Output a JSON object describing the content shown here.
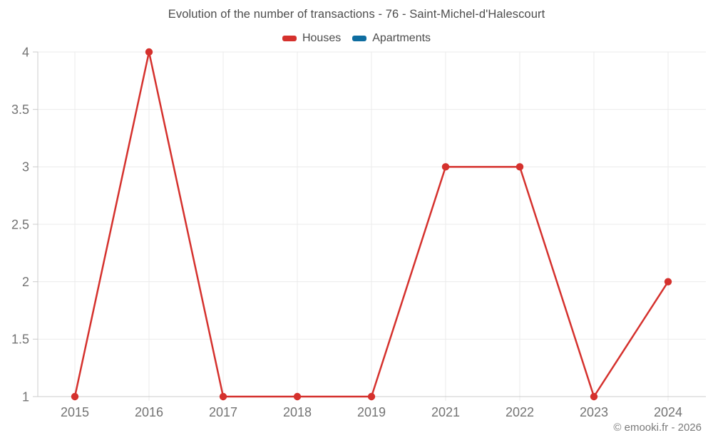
{
  "chart_data": {
    "type": "line",
    "title": "Evolution of the number of transactions - 76 - Saint-Michel-d'Halescourt",
    "categories": [
      "2015",
      "2016",
      "2017",
      "2018",
      "2019",
      "2021",
      "2022",
      "2023",
      "2024"
    ],
    "series": [
      {
        "name": "Houses",
        "color": "#d5312d",
        "values": [
          1,
          4,
          1,
          1,
          1,
          3,
          3,
          1,
          2
        ]
      },
      {
        "name": "Apartments",
        "color": "#0e6da0",
        "values": []
      }
    ],
    "yticks": [
      1,
      1.5,
      2,
      2.5,
      3,
      3.5,
      4
    ],
    "ylim": [
      1,
      4
    ],
    "xlabel": "",
    "ylabel": "",
    "grid": true,
    "legend_position": "top"
  },
  "footer": "© emooki.fr - 2026",
  "colors": {
    "grid": "#ebebeb",
    "axis": "#cccccc",
    "tick_text": "#737373",
    "title_text": "#4c4c4c",
    "houses": "#d5312d",
    "apartments": "#0e6da0"
  }
}
